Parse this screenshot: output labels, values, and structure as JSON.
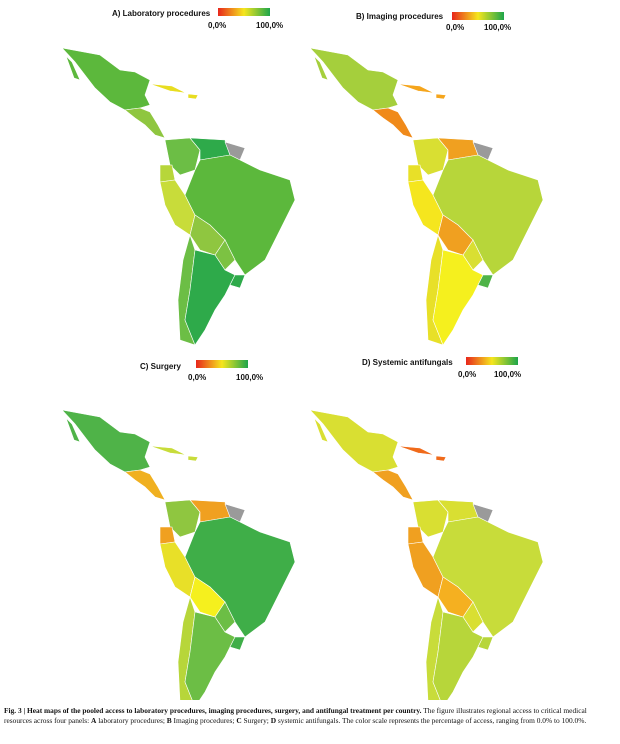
{
  "panels": [
    {
      "title": "A) Laboratory procedures",
      "legend": {
        "min": "0,0%",
        "max": "100,0%"
      }
    },
    {
      "title": "B) Imaging procedures",
      "legend": {
        "min": "0,0%",
        "max": "100,0%"
      }
    },
    {
      "title": "C) Surgery",
      "legend": {
        "min": "0,0%",
        "max": "100,0%"
      }
    },
    {
      "title": "D) Systemic antifungals",
      "legend": {
        "min": "0,0%",
        "max": "100,0%"
      }
    }
  ],
  "caption": [
    "Fig. 3 | Heat maps of the pooled access to laboratory procedures, imaging procedures, surgery, and antifungal treatment per country.",
    " The figure illustrates regional access to critical medical resources across four panels: ",
    "A",
    " laboratory procedures; ",
    "B",
    " Imaging procedures; ",
    "C",
    " Surgery; ",
    "D",
    " systemic antifungals. The color scale represents the percentage of access, ranging from 0.0% to 100.0%."
  ]
}
